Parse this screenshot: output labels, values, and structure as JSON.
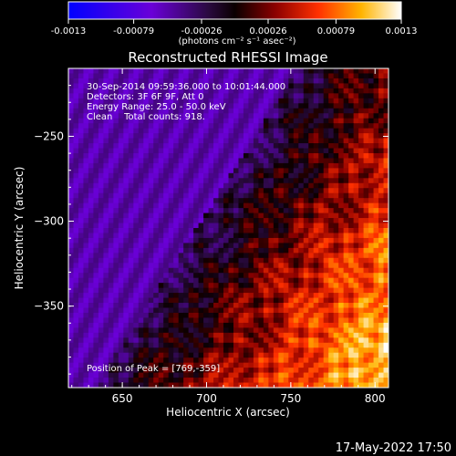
{
  "colorbar": {
    "tick_labels": [
      "-0.0013",
      "-0.00079",
      "-0.00026",
      "0.00026",
      "0.00079",
      "0.0013"
    ],
    "tick_values": [
      -0.0013,
      -0.00079,
      -0.00026,
      0.00026,
      0.00079,
      0.0013
    ],
    "range": [
      -0.0013,
      0.0013
    ],
    "unit_label": "(photons cm⁻² s⁻¹ asec⁻²)",
    "colors": [
      "#0000ff",
      "#7a00e6",
      "#3a1a6e",
      "#1a0a20",
      "#7a0000",
      "#ff2a00",
      "#ffb000",
      "#ffffff"
    ]
  },
  "chart_data": {
    "type": "heatmap",
    "title": "Reconstructed RHESSI Image",
    "xlabel": "Heliocentric X (arcsec)",
    "ylabel": "Heliocentric Y (arcsec)",
    "xlim": [
      618,
      808
    ],
    "ylim": [
      -398,
      -210
    ],
    "xticks": [
      650,
      700,
      750,
      800
    ],
    "xtick_labels": [
      "650",
      "700",
      "750",
      "800"
    ],
    "yticks": [
      -350,
      -300,
      -250
    ],
    "ytick_labels": [
      "−350",
      "−300",
      "−250"
    ],
    "annotations": [
      "30-Sep-2014 09:59:36.000 to 10:01:44.000",
      "Detectors: 3F 6F 9F, Att 0",
      "Energy Range: 25.0 - 50.0 keV",
      "Clean    Total counts: 918.",
      "Position of Peak = [769,-359]"
    ],
    "peak": {
      "x": 769,
      "y": -359
    },
    "grid": false
  },
  "footer": {
    "timestamp": "17-May-2022 17:50"
  }
}
